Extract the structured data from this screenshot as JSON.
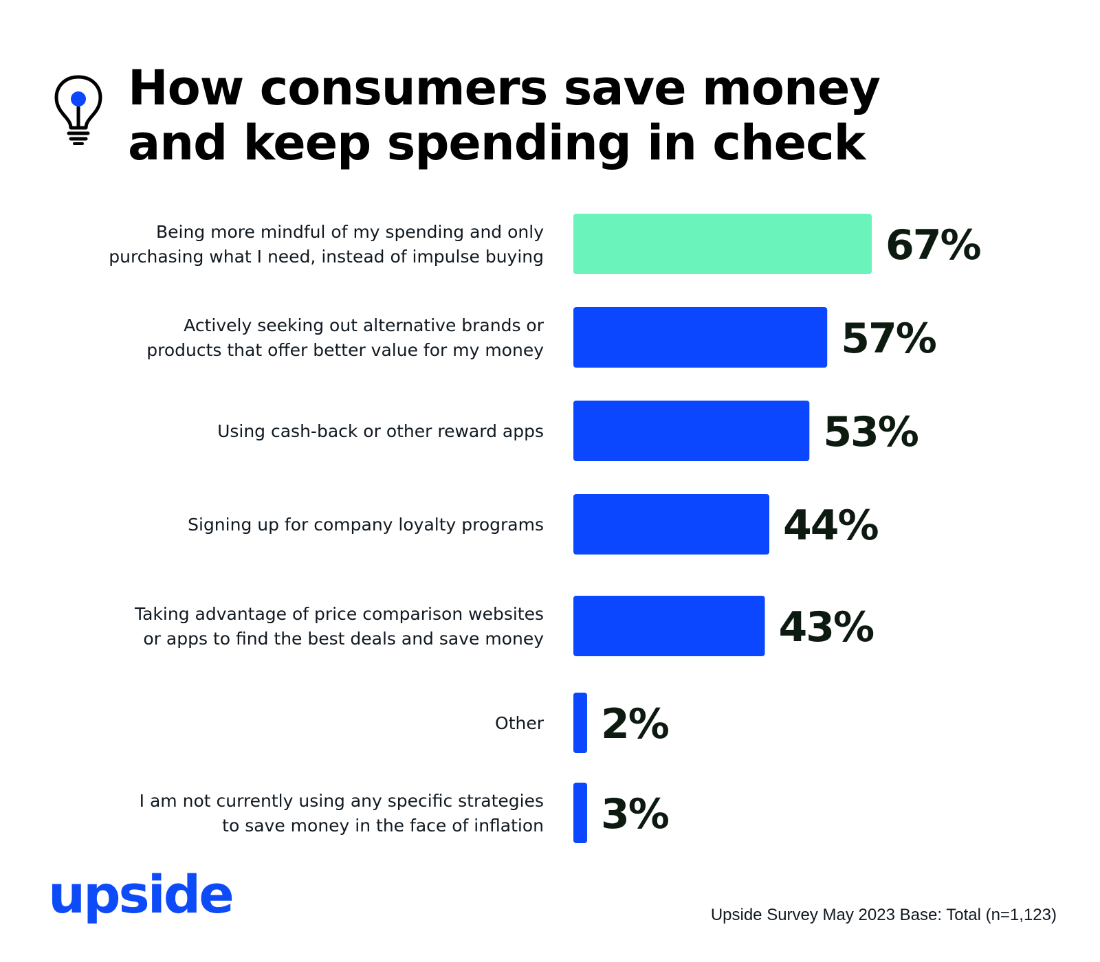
{
  "title": {
    "line1": "How consumers save money",
    "line2": "and keep spending in check"
  },
  "header_icon": "lightbulb-icon",
  "logo": {
    "text": "upside",
    "color": "#0d4bf9"
  },
  "footer": {
    "source": "Upside Survey May 2023 Base: Total (n=1,123)"
  },
  "colors": {
    "highlight": "#6af4bb",
    "bar": "#0a47ff",
    "value_text": "#0d1a10"
  },
  "chart_data": {
    "type": "bar",
    "orientation": "horizontal",
    "categories": [
      [
        "Being more mindful of my spending and only",
        "purchasing what I need, instead of impulse buying"
      ],
      [
        "Actively seeking out alternative brands or",
        "products that offer better value for my money"
      ],
      [
        "Using cash-back or other reward apps"
      ],
      [
        "Signing up for company loyalty programs"
      ],
      [
        "Taking advantage of price comparison websites",
        "or apps to find the best deals and save money"
      ],
      [
        "Other"
      ],
      [
        "I am not currently using any specific strategies",
        "to save money in the face of inflation"
      ]
    ],
    "values": [
      67,
      57,
      53,
      44,
      43,
      2,
      3
    ],
    "value_labels": [
      "67%",
      "57%",
      "53%",
      "44%",
      "43%",
      "2%",
      "3%"
    ],
    "unit": "%",
    "highlight_index": 0,
    "xlim": [
      0,
      67
    ],
    "grid": false,
    "legend": "none",
    "title": ""
  }
}
